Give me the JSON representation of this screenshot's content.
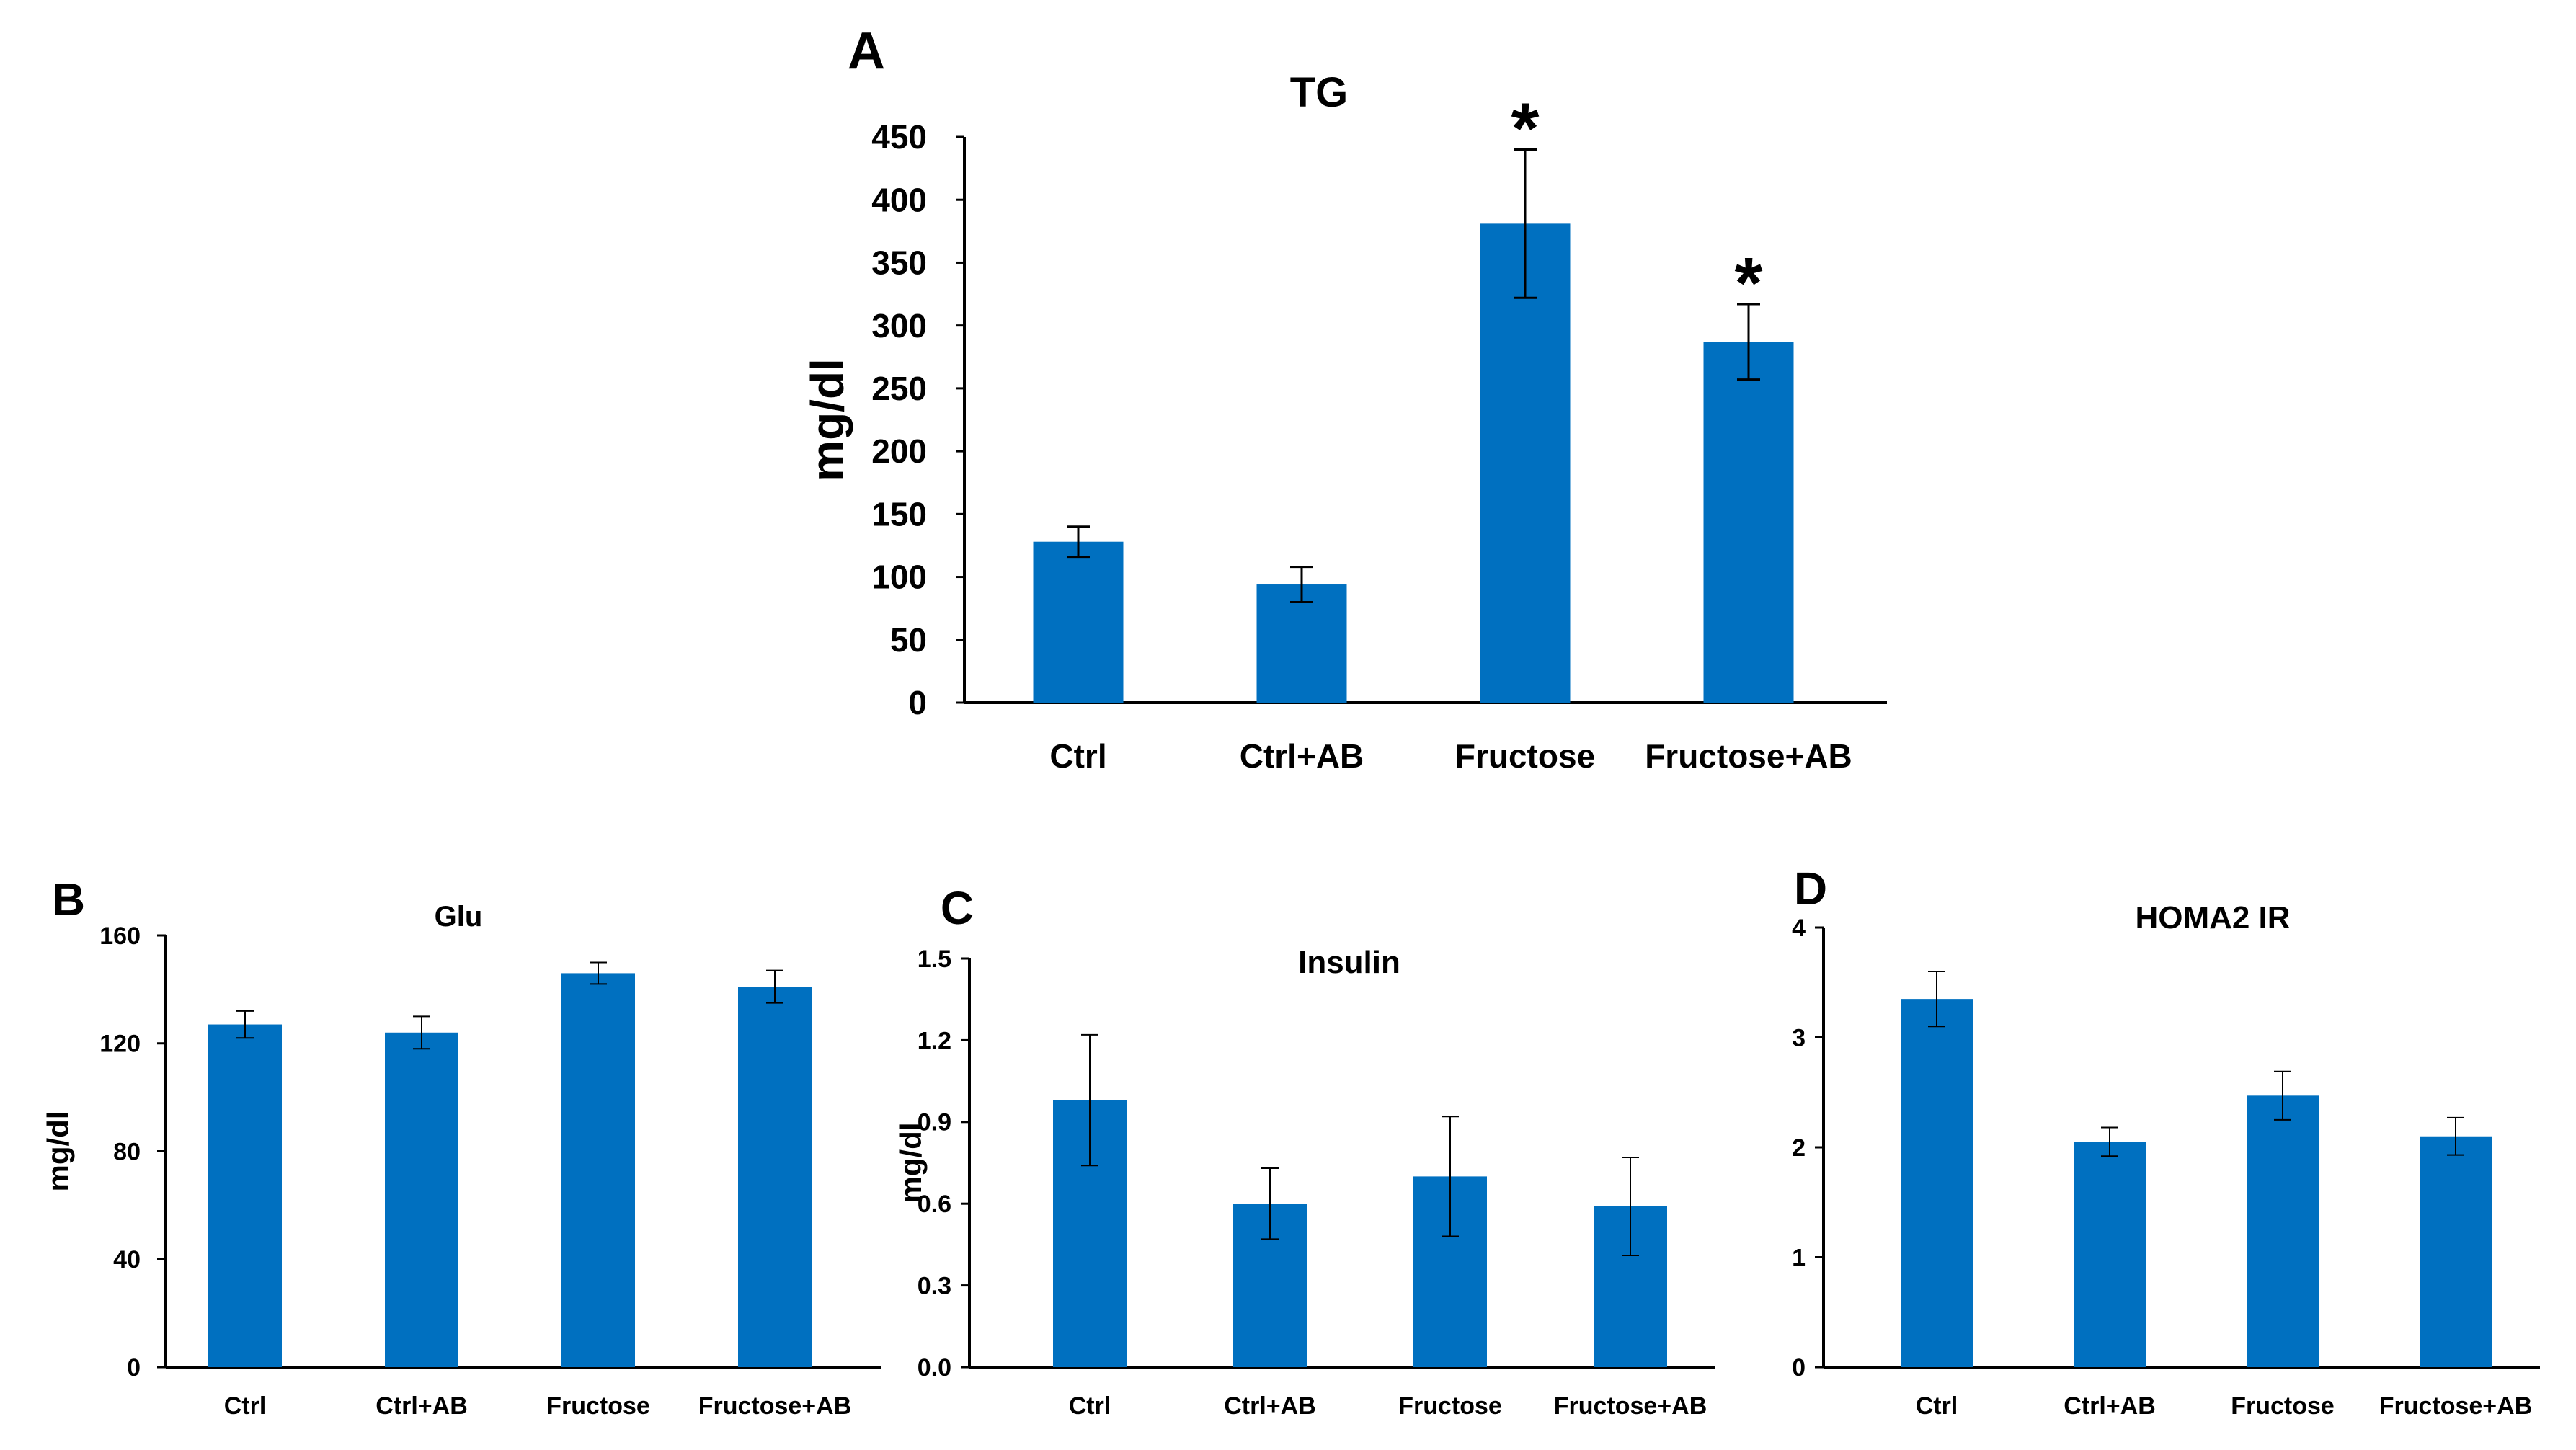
{
  "colors": {
    "bar": "#0070C0",
    "axis": "#000000"
  },
  "chart_data": [
    {
      "panel_letter": "A",
      "type": "bar",
      "title": "TG",
      "xlabel": "",
      "ylabel": "mg/dl",
      "ylim": [
        0,
        450
      ],
      "yticks": [
        "0",
        "50",
        "100",
        "150",
        "200",
        "250",
        "300",
        "350",
        "400",
        "450"
      ],
      "categories": [
        "Ctrl",
        "Ctrl+AB",
        "Fructose",
        "Fructose+AB"
      ],
      "values": [
        128,
        94,
        381,
        287
      ],
      "error": [
        12,
        14,
        59,
        30
      ],
      "annotations": [
        "",
        "",
        "*",
        "*"
      ]
    },
    {
      "panel_letter": "B",
      "type": "bar",
      "title": "Glu",
      "xlabel": "",
      "ylabel": "mg/dl",
      "ylim": [
        0,
        160
      ],
      "yticks": [
        "0",
        "40",
        "80",
        "120",
        "160"
      ],
      "categories": [
        "Ctrl",
        "Ctrl+AB",
        "Fructose",
        "Fructose+AB"
      ],
      "values": [
        127,
        124,
        146,
        141
      ],
      "error": [
        5,
        6,
        4,
        6
      ],
      "annotations": [
        "",
        "",
        "",
        ""
      ]
    },
    {
      "panel_letter": "C",
      "type": "bar",
      "title": "Insulin",
      "xlabel": "",
      "ylabel": "mg/dl",
      "ylim": [
        0,
        1.5
      ],
      "yticks": [
        "0.0",
        "0.3",
        "0.6",
        "0.9",
        "1.2",
        "1.5"
      ],
      "categories": [
        "Ctrl",
        "Ctrl+AB",
        "Fructose",
        "Fructose+AB"
      ],
      "values": [
        0.98,
        0.6,
        0.7,
        0.59
      ],
      "error": [
        0.24,
        0.13,
        0.22,
        0.18
      ],
      "annotations": [
        "",
        "",
        "",
        ""
      ]
    },
    {
      "panel_letter": "D",
      "type": "bar",
      "title": "HOMA2 IR",
      "xlabel": "",
      "ylabel": "",
      "ylim": [
        0,
        4
      ],
      "yticks": [
        "0",
        "1",
        "2",
        "3",
        "4"
      ],
      "categories": [
        "Ctrl",
        "Ctrl+AB",
        "Fructose",
        "Fructose+AB"
      ],
      "values": [
        3.35,
        2.05,
        2.47,
        2.1
      ],
      "error": [
        0.25,
        0.13,
        0.22,
        0.17
      ],
      "annotations": [
        "",
        "",
        "",
        ""
      ]
    }
  ]
}
